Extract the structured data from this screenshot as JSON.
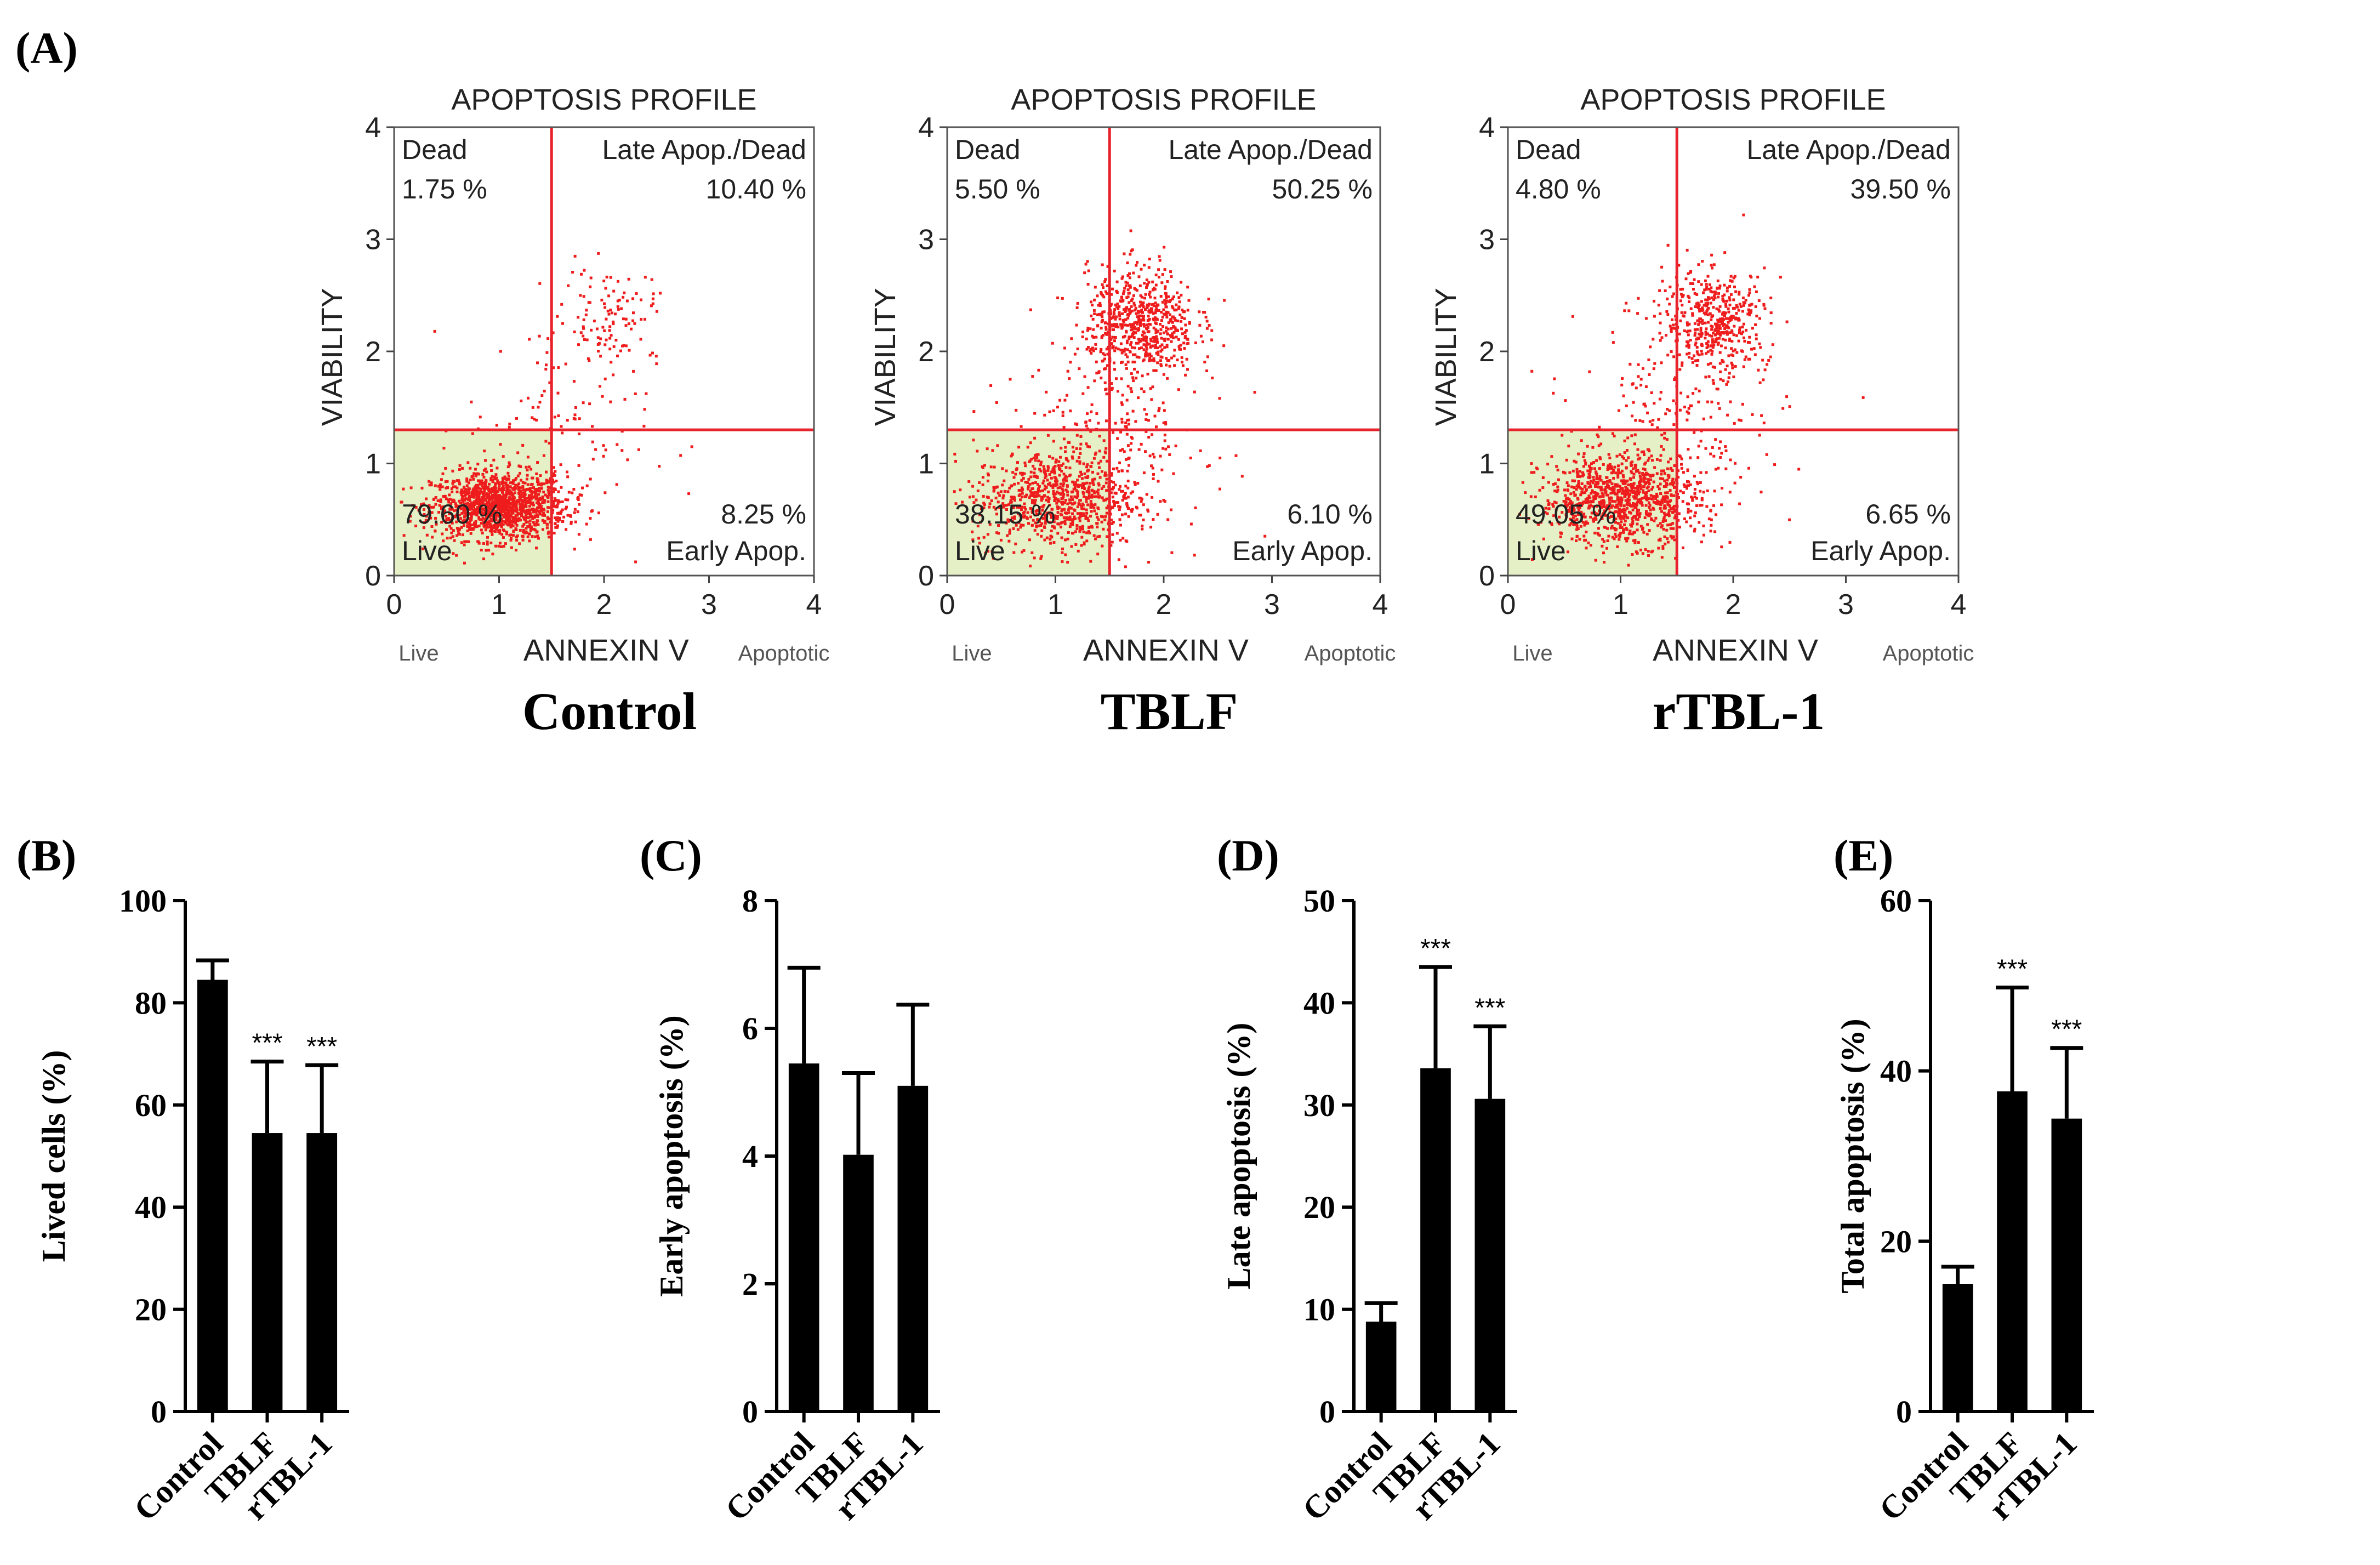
{
  "panel_a": {
    "label": "(A)",
    "plot_title": "APOPTOSIS PROFILE",
    "x_axis_title": "ANNEXIN V",
    "y_axis_title": "VIABILITY",
    "x_left_note": "Live",
    "x_right_note": "Apoptotic",
    "ticks": [
      "0",
      "1",
      "2",
      "3",
      "4"
    ],
    "quadrant_names": {
      "ul": "Dead",
      "ur": "Late Apop./Dead",
      "ll": "Live",
      "lr": "Early Apop."
    },
    "gate": {
      "x": 1.5,
      "y": 1.3
    },
    "plots": [
      {
        "caption": "Control",
        "ul": "1.75 %",
        "ur": "10.40 %",
        "ll": "79.60 %",
        "lr": "8.25 %"
      },
      {
        "caption": "TBLF",
        "ul": "5.50 %",
        "ur": "50.25 %",
        "ll": "38.15 %",
        "lr": "6.10 %"
      },
      {
        "caption": "rTBL-1",
        "ul": "4.80 %",
        "ur": "39.50 %",
        "ll": "49.05 %",
        "lr": "6.65 %"
      }
    ]
  },
  "colors": {
    "scatter": "#ee1c1c",
    "gate": "#e8232b",
    "live_fill": "#e6f0c6",
    "bar": "#000000",
    "frame": "#000000"
  },
  "chart_data": [
    {
      "id": "B",
      "type": "bar",
      "label": "(B)",
      "ylabel": "Lived cells (%)",
      "ylim": [
        0,
        100
      ],
      "yticks": [
        0,
        20,
        40,
        60,
        80,
        100
      ],
      "ytick_labels": [
        "0",
        "20",
        "40",
        "60",
        "80",
        "100"
      ],
      "categories": [
        "Control",
        "TBLF",
        "rTBL-1"
      ],
      "values": [
        84.5,
        54.5,
        54.5
      ],
      "errors": [
        3.8,
        14.0,
        13.3
      ],
      "annotations": [
        "",
        "***",
        "***"
      ]
    },
    {
      "id": "C",
      "type": "bar",
      "label": "(C)",
      "ylabel": "Early apoptosis (%)",
      "ylim": [
        0,
        8
      ],
      "yticks": [
        0,
        2,
        4,
        6,
        8
      ],
      "ytick_labels": [
        "0",
        "2",
        "4",
        "6",
        "8"
      ],
      "categories": [
        "Control",
        "TBLF",
        "rTBL-1"
      ],
      "values": [
        5.45,
        4.02,
        5.1
      ],
      "errors": [
        1.5,
        1.28,
        1.27
      ],
      "annotations": [
        "",
        "",
        ""
      ]
    },
    {
      "id": "D",
      "type": "bar",
      "label": "(D)",
      "ylabel": "Late apoptosis (%)",
      "ylim": [
        0,
        50
      ],
      "yticks": [
        0,
        10,
        20,
        30,
        40,
        50
      ],
      "ytick_labels": [
        "0",
        "10",
        "20",
        "30",
        "40",
        "50"
      ],
      "categories": [
        "Control",
        "TBLF",
        "rTBL-1"
      ],
      "values": [
        8.8,
        33.6,
        30.6
      ],
      "errors": [
        1.8,
        9.9,
        7.1
      ],
      "annotations": [
        "",
        "***",
        "***"
      ]
    },
    {
      "id": "E",
      "type": "bar",
      "label": "(E)",
      "ylabel": "Total apoptosis (%)",
      "ylim": [
        0,
        60
      ],
      "yticks": [
        0,
        20,
        40,
        60
      ],
      "ytick_labels": [
        "0",
        "20",
        "40",
        "60"
      ],
      "categories": [
        "Control",
        "TBLF",
        "rTBL-1"
      ],
      "values": [
        15.0,
        37.6,
        34.4
      ],
      "errors": [
        2.0,
        12.2,
        8.3
      ],
      "annotations": [
        "",
        "***",
        "***"
      ]
    }
  ]
}
